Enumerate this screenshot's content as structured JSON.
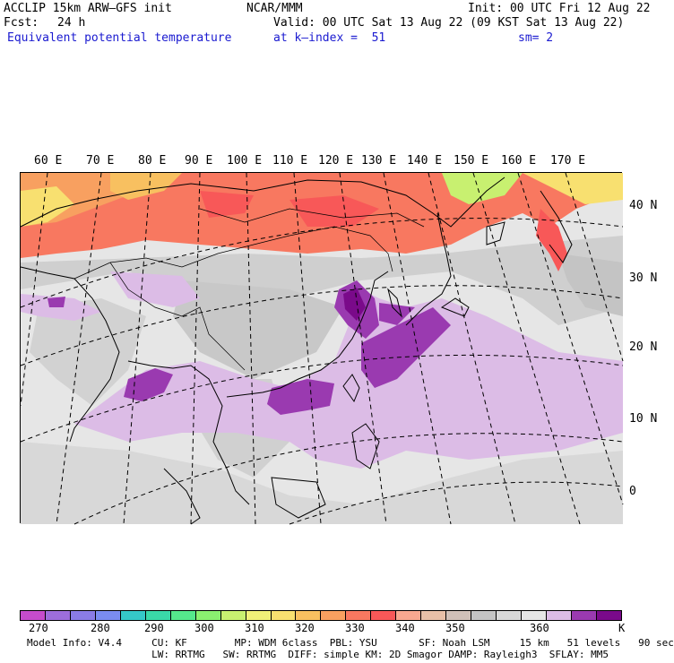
{
  "header": {
    "model": "ACCLIP 15km ARW–GFS init",
    "fcst_label": "Fcst:",
    "fcst_value": "24 h",
    "org": "NCAR/MMM",
    "init": "Init: 00 UTC Fri 12 Aug 22",
    "valid": "Valid: 00 UTC Sat 13 Aug 22 (09 KST Sat 13 Aug 22)",
    "field": "Equivalent potential temperature",
    "level": "at k–index =  51",
    "smooth": "sm= 2"
  },
  "map": {
    "lon_labels": [
      "60 E",
      "70 E",
      "80 E",
      "90 E",
      "100 E",
      "110 E",
      "120 E",
      "130 E",
      "140 E",
      "150 E",
      "160 E",
      "170 E"
    ],
    "lat_labels": [
      "40 N",
      "30 N",
      "20 N",
      "10 N",
      "0"
    ]
  },
  "colorbar": {
    "unit": "K",
    "colors": [
      "#c64ccc",
      "#9d6edb",
      "#8a7ce6",
      "#7a8cf0",
      "#35c8c8",
      "#3ad8a8",
      "#55e88c",
      "#8af070",
      "#c8f070",
      "#f0f078",
      "#f8e070",
      "#f8c060",
      "#f8a060",
      "#f87860",
      "#f85858",
      "#f8a890",
      "#e8c0a8",
      "#d0c0b8",
      "#c4c4c4",
      "#d8d8d8",
      "#e6e6e6",
      "#dcbce6",
      "#9a3ab0",
      "#7a0a8a"
    ],
    "ticks": [
      "270",
      "280",
      "290",
      "300",
      "310",
      "320",
      "330",
      "340",
      "350",
      "360"
    ],
    "unit_label": "K"
  },
  "footer": {
    "line1": "Model Info: V4.4     CU: KF        MP: WDM 6class  PBL: YSU       SF: Noah LSM     15 km   51 levels   90 sec",
    "line2": "                     LW: RRTMG   SW: RRTMG  DIFF: simple KM: 2D Smagor DAMP: Rayleigh3  SFLAY: MM5"
  }
}
